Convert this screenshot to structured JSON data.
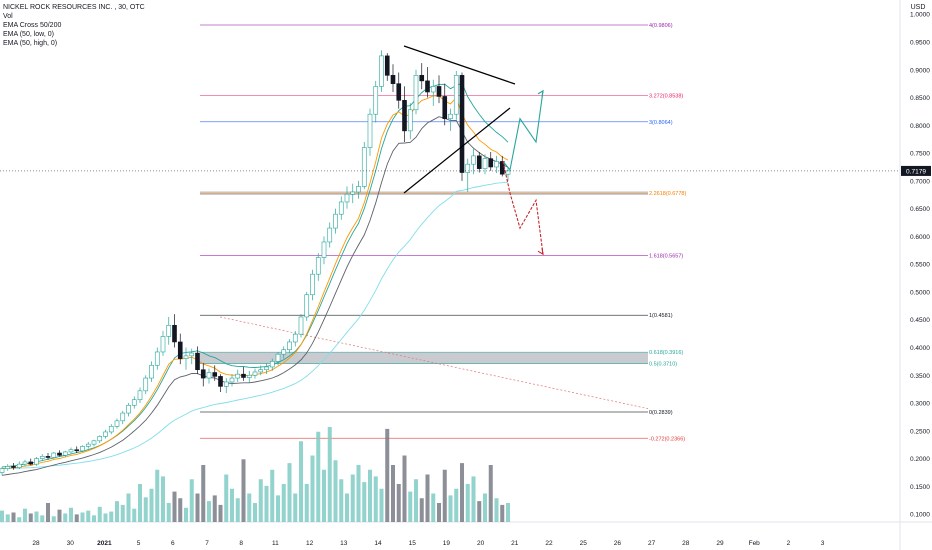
{
  "legend": {
    "title": "NICKEL ROCK RESOURCES INC. , 30, OTC",
    "lines": [
      "Vol",
      "EMA Cross 50/200",
      "EMA (50, low, 0)",
      "EMA (50, high, 0)"
    ]
  },
  "price_scale": {
    "currency": "USD",
    "current_price_label": "0.7179",
    "current_price": 0.7179
  },
  "chart_data": {
    "type": "candlestick",
    "title": "NICKEL ROCK RESOURCES INC. , 30, OTC",
    "y_ticks": [
      0.1,
      0.15,
      0.2,
      0.25,
      0.3,
      0.35,
      0.4,
      0.45,
      0.5,
      0.55,
      0.6,
      0.65,
      0.7,
      0.75,
      0.8,
      0.85,
      0.9,
      0.95,
      1.0
    ],
    "y_tick_labels": [
      "0.1000",
      "0.1500",
      "0.2000",
      "0.2500",
      "0.3000",
      "0.3500",
      "0.4000",
      "0.4500",
      "0.5000",
      "0.5500",
      "0.6000",
      "0.6500",
      "0.7000",
      "0.7500",
      "0.8000",
      "0.8500",
      "0.9000",
      "0.9500",
      "1.0000"
    ],
    "x_tick_labels": [
      "28",
      "30",
      "2021",
      "5",
      "6",
      "7",
      "8",
      "11",
      "12",
      "13",
      "14",
      "15",
      "19",
      "20",
      "21",
      "22",
      "25",
      "26",
      "27",
      "28",
      "29",
      "Feb",
      "2",
      "3"
    ],
    "fib_levels": [
      {
        "label": "4(0.9806)",
        "value": 0.9806,
        "color": "#9c27b0"
      },
      {
        "label": "3.272(0.8538)",
        "value": 0.8538,
        "color": "#e91e63"
      },
      {
        "label": "3(0.8064)",
        "value": 0.8064,
        "color": "#2962ff"
      },
      {
        "label": "2.2618(0.6778)",
        "value": 0.6778,
        "color": "#f57c00"
      },
      {
        "label": "1.618(0.5657)",
        "value": 0.5657,
        "color": "#9c27b0"
      },
      {
        "label": "1(0.4581)",
        "value": 0.4581,
        "color": "#131722"
      },
      {
        "label": "0.618(0.3916)",
        "value": 0.3916,
        "color": "#26a69a"
      },
      {
        "label": "0.5(0.3710)",
        "value": 0.371,
        "color": "#26a69a"
      },
      {
        "label": "0(0.2839)",
        "value": 0.2839,
        "color": "#131722"
      },
      {
        "label": "-0.272(0.2366)",
        "value": 0.2366,
        "color": "#e53935"
      }
    ],
    "fib_label_index": [
      0,
      1,
      2,
      3,
      4,
      5,
      6,
      7,
      8,
      9
    ],
    "zones": [
      {
        "from": 0.6745,
        "to": 0.681
      },
      {
        "from": 0.371,
        "to": 0.3916
      }
    ],
    "candles": [
      [
        0.175,
        0.185,
        0.17,
        0.182
      ],
      [
        0.182,
        0.19,
        0.178,
        0.186
      ],
      [
        0.186,
        0.192,
        0.18,
        0.184
      ],
      [
        0.184,
        0.195,
        0.181,
        0.19
      ],
      [
        0.19,
        0.198,
        0.186,
        0.194
      ],
      [
        0.194,
        0.2,
        0.188,
        0.19
      ],
      [
        0.19,
        0.203,
        0.187,
        0.2
      ],
      [
        0.2,
        0.208,
        0.196,
        0.204
      ],
      [
        0.204,
        0.21,
        0.198,
        0.202
      ],
      [
        0.202,
        0.212,
        0.2,
        0.21
      ],
      [
        0.21,
        0.215,
        0.204,
        0.206
      ],
      [
        0.206,
        0.214,
        0.203,
        0.212
      ],
      [
        0.212,
        0.22,
        0.208,
        0.216
      ],
      [
        0.216,
        0.222,
        0.21,
        0.214
      ],
      [
        0.214,
        0.224,
        0.212,
        0.222
      ],
      [
        0.222,
        0.23,
        0.218,
        0.226
      ],
      [
        0.226,
        0.234,
        0.222,
        0.232
      ],
      [
        0.232,
        0.242,
        0.228,
        0.24
      ],
      [
        0.24,
        0.252,
        0.236,
        0.248
      ],
      [
        0.248,
        0.262,
        0.244,
        0.258
      ],
      [
        0.258,
        0.272,
        0.254,
        0.268
      ],
      [
        0.268,
        0.286,
        0.262,
        0.282
      ],
      [
        0.282,
        0.3,
        0.276,
        0.296
      ],
      [
        0.296,
        0.312,
        0.29,
        0.306
      ],
      [
        0.306,
        0.328,
        0.3,
        0.322
      ],
      [
        0.322,
        0.35,
        0.316,
        0.345
      ],
      [
        0.345,
        0.375,
        0.338,
        0.368
      ],
      [
        0.368,
        0.4,
        0.36,
        0.392
      ],
      [
        0.392,
        0.43,
        0.385,
        0.42
      ],
      [
        0.42,
        0.455,
        0.405,
        0.44
      ],
      [
        0.44,
        0.46,
        0.4,
        0.41
      ],
      [
        0.41,
        0.425,
        0.37,
        0.38
      ],
      [
        0.38,
        0.4,
        0.36,
        0.385
      ],
      [
        0.385,
        0.398,
        0.37,
        0.39
      ],
      [
        0.39,
        0.402,
        0.352,
        0.36
      ],
      [
        0.36,
        0.372,
        0.33,
        0.345
      ],
      [
        0.345,
        0.362,
        0.335,
        0.355
      ],
      [
        0.355,
        0.368,
        0.34,
        0.348
      ],
      [
        0.348,
        0.352,
        0.32,
        0.33
      ],
      [
        0.33,
        0.345,
        0.318,
        0.338
      ],
      [
        0.338,
        0.352,
        0.33,
        0.345
      ],
      [
        0.345,
        0.36,
        0.338,
        0.352
      ],
      [
        0.352,
        0.365,
        0.34,
        0.346
      ],
      [
        0.346,
        0.358,
        0.336,
        0.35
      ],
      [
        0.35,
        0.362,
        0.344,
        0.356
      ],
      [
        0.356,
        0.368,
        0.35,
        0.36
      ],
      [
        0.36,
        0.372,
        0.352,
        0.365
      ],
      [
        0.365,
        0.38,
        0.358,
        0.375
      ],
      [
        0.375,
        0.392,
        0.368,
        0.388
      ],
      [
        0.388,
        0.402,
        0.38,
        0.396
      ],
      [
        0.396,
        0.415,
        0.39,
        0.41
      ],
      [
        0.41,
        0.43,
        0.402,
        0.424
      ],
      [
        0.424,
        0.46,
        0.418,
        0.455
      ],
      [
        0.455,
        0.5,
        0.448,
        0.495
      ],
      [
        0.495,
        0.54,
        0.485,
        0.532
      ],
      [
        0.532,
        0.57,
        0.52,
        0.562
      ],
      [
        0.562,
        0.6,
        0.55,
        0.59
      ],
      [
        0.59,
        0.625,
        0.58,
        0.615
      ],
      [
        0.615,
        0.65,
        0.605,
        0.64
      ],
      [
        0.64,
        0.672,
        0.63,
        0.662
      ],
      [
        0.662,
        0.69,
        0.65,
        0.676
      ],
      [
        0.676,
        0.695,
        0.66,
        0.68
      ],
      [
        0.68,
        0.7,
        0.668,
        0.69
      ],
      [
        0.69,
        0.77,
        0.685,
        0.76
      ],
      [
        0.76,
        0.83,
        0.745,
        0.82
      ],
      [
        0.82,
        0.88,
        0.805,
        0.87
      ],
      [
        0.87,
        0.935,
        0.86,
        0.925
      ],
      [
        0.925,
        0.93,
        0.88,
        0.89
      ],
      [
        0.89,
        0.91,
        0.86,
        0.875
      ],
      [
        0.875,
        0.895,
        0.83,
        0.845
      ],
      [
        0.845,
        0.87,
        0.77,
        0.79
      ],
      [
        0.79,
        0.84,
        0.775,
        0.828
      ],
      [
        0.828,
        0.9,
        0.82,
        0.89
      ],
      [
        0.89,
        0.912,
        0.865,
        0.88
      ],
      [
        0.88,
        0.905,
        0.85,
        0.86
      ],
      [
        0.86,
        0.882,
        0.835,
        0.87
      ],
      [
        0.87,
        0.89,
        0.84,
        0.852
      ],
      [
        0.852,
        0.875,
        0.8,
        0.812
      ],
      [
        0.812,
        0.83,
        0.79,
        0.82
      ],
      [
        0.82,
        0.898,
        0.81,
        0.89
      ],
      [
        0.89,
        0.895,
        0.7,
        0.715
      ],
      [
        0.715,
        0.74,
        0.68,
        0.73
      ],
      [
        0.73,
        0.76,
        0.712,
        0.745
      ],
      [
        0.745,
        0.752,
        0.715,
        0.722
      ],
      [
        0.722,
        0.748,
        0.712,
        0.74
      ],
      [
        0.74,
        0.752,
        0.718,
        0.725
      ],
      [
        0.725,
        0.745,
        0.714,
        0.735
      ],
      [
        0.735,
        0.745,
        0.708,
        0.712
      ],
      [
        0.712,
        0.725,
        0.7,
        0.718
      ]
    ],
    "volumes": [
      0.12,
      0.08,
      0.1,
      0.05,
      0.14,
      0.09,
      0.11,
      0.07,
      0.2,
      0.06,
      0.13,
      0.09,
      0.15,
      0.08,
      0.1,
      0.12,
      0.07,
      0.16,
      0.09,
      0.11,
      0.22,
      0.18,
      0.3,
      0.14,
      0.4,
      0.26,
      0.35,
      0.55,
      0.48,
      0.2,
      0.32,
      0.25,
      0.15,
      0.45,
      0.3,
      0.6,
      0.22,
      0.28,
      0.18,
      0.5,
      0.35,
      0.25,
      0.66,
      0.3,
      0.2,
      0.45,
      0.38,
      0.55,
      0.28,
      0.4,
      0.62,
      0.3,
      0.85,
      0.4,
      0.7,
      0.95,
      0.55,
      1.0,
      0.65,
      0.45,
      0.3,
      0.5,
      0.6,
      0.42,
      0.55,
      0.48,
      0.35,
      0.98,
      0.6,
      0.4,
      0.7,
      0.32,
      0.45,
      0.25,
      0.5,
      0.3,
      0.2,
      0.55,
      0.28,
      0.35,
      0.62,
      0.4,
      0.48,
      0.22,
      0.3,
      0.6,
      0.25,
      0.18,
      0.2
    ],
    "volume_colored_up": true,
    "projection_up": [
      [
        0.735,
        0
      ],
      [
        0.72,
        0
      ],
      [
        0.812,
        0
      ],
      [
        0.77,
        0
      ],
      [
        0.862,
        0
      ]
    ],
    "projection_down": [
      [
        0.735,
        0
      ],
      [
        0.678,
        0
      ],
      [
        0.615,
        0
      ],
      [
        0.665,
        0
      ],
      [
        0.568,
        0
      ]
    ]
  }
}
